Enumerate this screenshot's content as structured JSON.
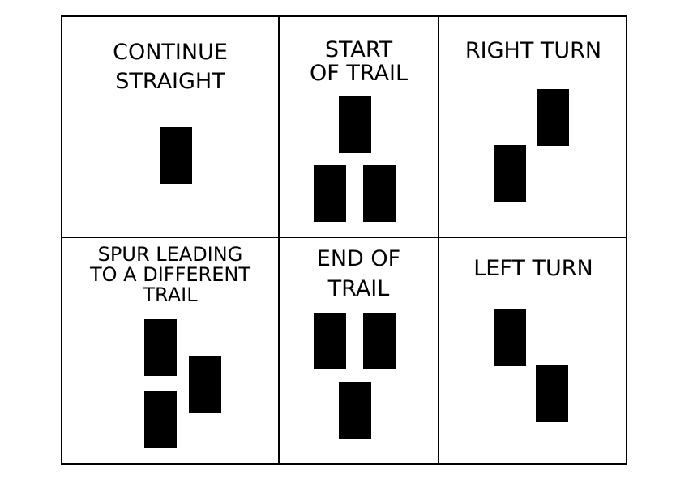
{
  "blaze_color": "#000000",
  "border_color": "#000000",
  "cells": [
    {
      "key": "continue",
      "label": "CONTINUE\nSTRAIGHT",
      "blazes": 1
    },
    {
      "key": "start",
      "label": "START\nOF TRAIL",
      "blazes": 3
    },
    {
      "key": "right",
      "label": "RIGHT TURN",
      "blazes": 2
    },
    {
      "key": "spur",
      "label": "SPUR LEADING\nTO A DIFFERENT\nTRAIL",
      "blazes": 3
    },
    {
      "key": "end",
      "label": "END OF\nTRAIL",
      "blazes": 3
    },
    {
      "key": "left",
      "label": "LEFT TURN",
      "blazes": 2
    }
  ]
}
